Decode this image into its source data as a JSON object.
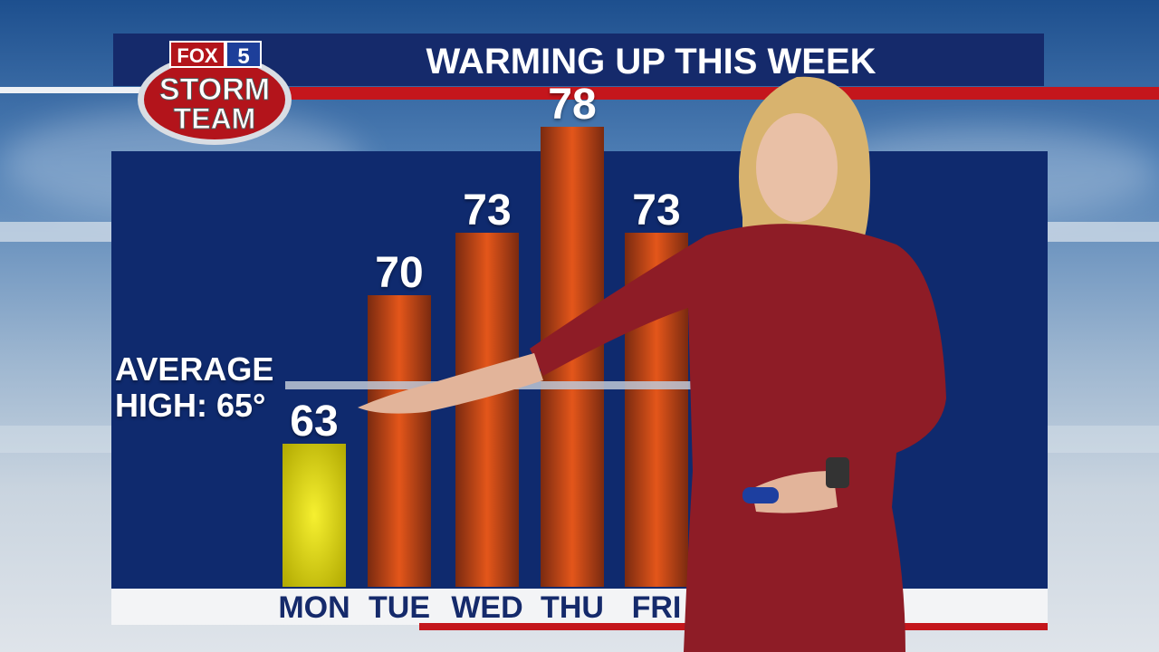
{
  "logo": {
    "brand": "FOX 5",
    "name": "STORM TEAM"
  },
  "title": "WARMING UP THIS WEEK",
  "chart_data": {
    "type": "bar",
    "title": "WARMING UP THIS WEEK",
    "categories": [
      "MON",
      "TUE",
      "WED",
      "THU",
      "FRI"
    ],
    "values": [
      63,
      70,
      73,
      78,
      73
    ],
    "units": "°F",
    "reference_line": {
      "label_line1": "AVERAGE",
      "label_line2": "HIGH: 65°",
      "value": 65
    },
    "colors": {
      "below_average": "#e8e020",
      "above_average": "#e4561a"
    }
  },
  "colors": {
    "panel": "#0f2a6e",
    "title_bar": "#152a6b",
    "accent_red": "#c4161c"
  }
}
